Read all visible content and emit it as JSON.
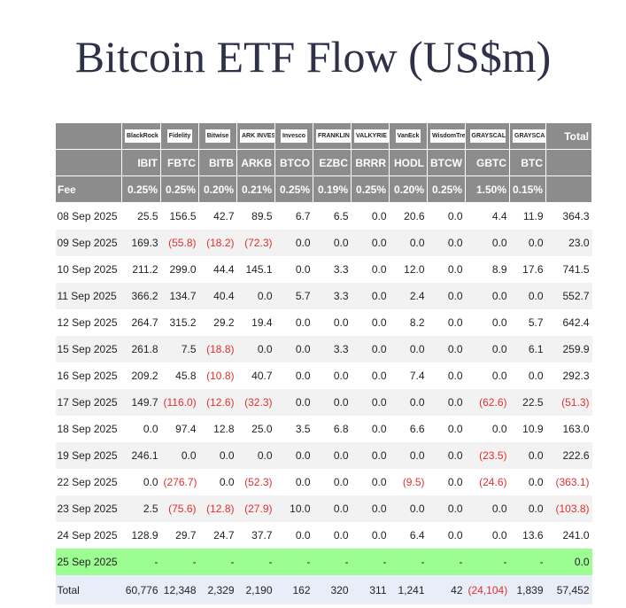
{
  "header": {
    "title": "Bitcoin ETF Flow (US$m)"
  },
  "table": {
    "logos": [
      "BlackRock",
      "Fidelity",
      "Bitwise",
      "ARK INVEST",
      "Invesco",
      "FRANKLIN TEMPLETON",
      "VALKYRIE",
      "VanEck",
      "WisdomTree",
      "GRAYSCALE",
      "GRAYSCALE"
    ],
    "total_label": "Total",
    "tickers": [
      "IBIT",
      "FBTC",
      "BITB",
      "ARKB",
      "BTCO",
      "EZBC",
      "BRRR",
      "HODL",
      "BTCW",
      "GBTC",
      "BTC"
    ],
    "fee_label": "Fee",
    "fees": [
      "0.25%",
      "0.25%",
      "0.20%",
      "0.21%",
      "0.25%",
      "0.19%",
      "0.25%",
      "0.20%",
      "0.25%",
      "1.50%",
      "0.15%"
    ],
    "rows": [
      [
        "08 Sep 2025",
        "25.5",
        "156.5",
        "42.7",
        "89.5",
        "6.7",
        "6.5",
        "0.0",
        "20.6",
        "0.0",
        "4.4",
        "11.9",
        "364.3"
      ],
      [
        "09 Sep 2025",
        "169.3",
        "(55.8)",
        "(18.2)",
        "(72.3)",
        "0.0",
        "0.0",
        "0.0",
        "0.0",
        "0.0",
        "0.0",
        "0.0",
        "23.0"
      ],
      [
        "10 Sep 2025",
        "211.2",
        "299.0",
        "44.4",
        "145.1",
        "0.0",
        "3.3",
        "0.0",
        "12.0",
        "0.0",
        "8.9",
        "17.6",
        "741.5"
      ],
      [
        "11 Sep 2025",
        "366.2",
        "134.7",
        "40.4",
        "0.0",
        "5.7",
        "3.3",
        "0.0",
        "2.4",
        "0.0",
        "0.0",
        "0.0",
        "552.7"
      ],
      [
        "12 Sep 2025",
        "264.7",
        "315.2",
        "29.2",
        "19.4",
        "0.0",
        "0.0",
        "0.0",
        "8.2",
        "0.0",
        "0.0",
        "5.7",
        "642.4"
      ],
      [
        "15 Sep 2025",
        "261.8",
        "7.5",
        "(18.8)",
        "0.0",
        "0.0",
        "3.3",
        "0.0",
        "0.0",
        "0.0",
        "0.0",
        "6.1",
        "259.9"
      ],
      [
        "16 Sep 2025",
        "209.2",
        "45.8",
        "(10.8)",
        "40.7",
        "0.0",
        "0.0",
        "0.0",
        "7.4",
        "0.0",
        "0.0",
        "0.0",
        "292.3"
      ],
      [
        "17 Sep 2025",
        "149.7",
        "(116.0)",
        "(12.6)",
        "(32.3)",
        "0.0",
        "0.0",
        "0.0",
        "0.0",
        "0.0",
        "(62.6)",
        "22.5",
        "(51.3)"
      ],
      [
        "18 Sep 2025",
        "0.0",
        "97.4",
        "12.8",
        "25.0",
        "3.5",
        "6.8",
        "0.0",
        "6.6",
        "0.0",
        "0.0",
        "10.9",
        "163.0"
      ],
      [
        "19 Sep 2025",
        "246.1",
        "0.0",
        "0.0",
        "0.0",
        "0.0",
        "0.0",
        "0.0",
        "0.0",
        "0.0",
        "(23.5)",
        "0.0",
        "222.6"
      ],
      [
        "22 Sep 2025",
        "0.0",
        "(276.7)",
        "0.0",
        "(52.3)",
        "0.0",
        "0.0",
        "0.0",
        "(9.5)",
        "0.0",
        "(24.6)",
        "0.0",
        "(363.1)"
      ],
      [
        "23 Sep 2025",
        "2.5",
        "(75.6)",
        "(12.8)",
        "(27.9)",
        "10.0",
        "0.0",
        "0.0",
        "0.0",
        "0.0",
        "0.0",
        "0.0",
        "(103.8)"
      ],
      [
        "24 Sep 2025",
        "128.9",
        "29.7",
        "24.7",
        "37.7",
        "0.0",
        "0.0",
        "0.0",
        "6.4",
        "0.0",
        "0.0",
        "13.6",
        "241.0"
      ],
      [
        "25 Sep 2025",
        "-",
        "-",
        "-",
        "-",
        "-",
        "-",
        "-",
        "-",
        "-",
        "-",
        "-",
        "0.0"
      ]
    ],
    "total_row": [
      "Total",
      "60,776",
      "12,348",
      "2,329",
      "2,190",
      "162",
      "320",
      "311",
      "1,241",
      "42",
      "(24,104)",
      "1,839",
      "57,452"
    ]
  }
}
